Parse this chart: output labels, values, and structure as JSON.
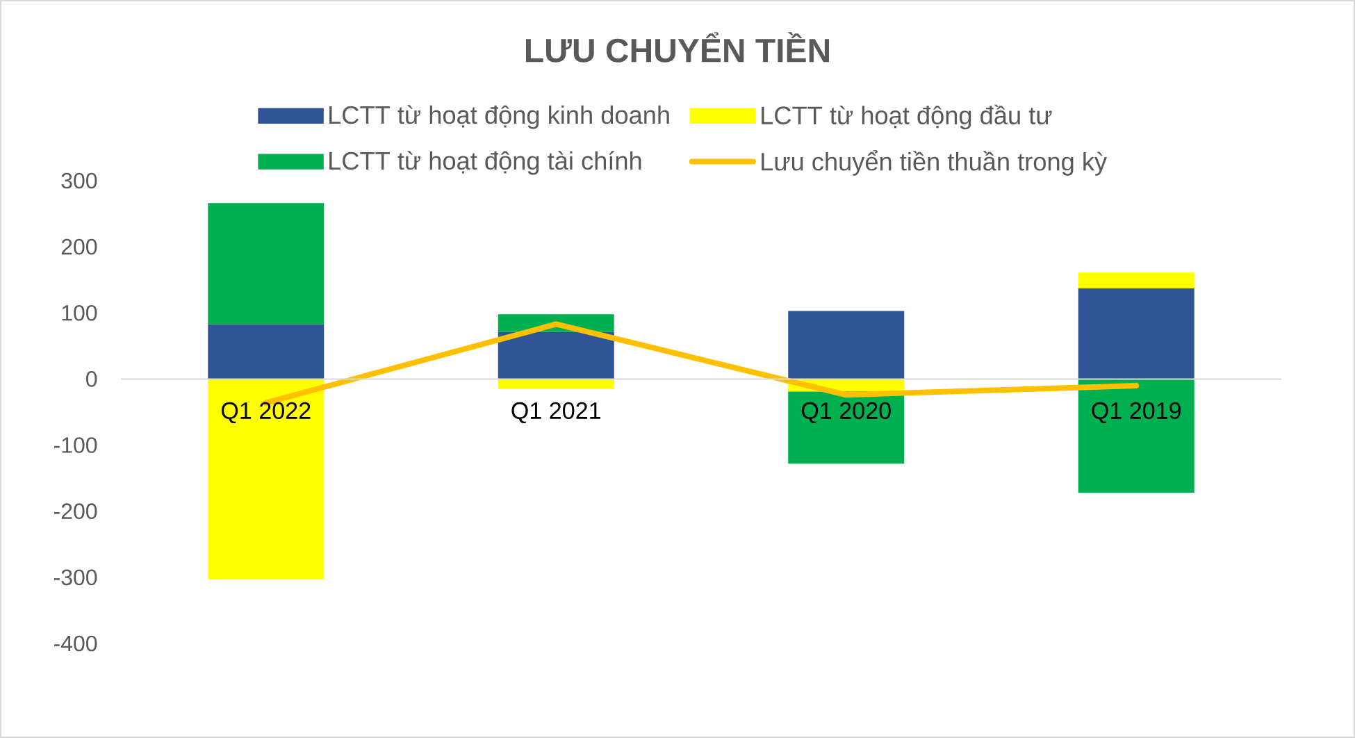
{
  "chart_data": {
    "type": "bar",
    "title": "LƯU CHUYỂN TIỀN",
    "categories": [
      "Q1 2022",
      "Q1 2021",
      "Q1 2020",
      "Q1 2019"
    ],
    "series": [
      {
        "name": "LCTT từ hoạt động kinh doanh",
        "color": "#2f5597",
        "values": [
          83,
          71,
          103,
          137
        ]
      },
      {
        "name": "LCTT từ hoạt động đầu tư",
        "color": "#ffff00",
        "values": [
          -303,
          -15,
          -19,
          24
        ]
      },
      {
        "name": "LCTT từ hoạt động tài chính",
        "color": "#00b050",
        "values": [
          183,
          27,
          -109,
          -172
        ]
      },
      {
        "name": "Lưu chuyển tiền thuần trong kỳ",
        "type": "line",
        "color": "#ffc000",
        "values": [
          -36,
          83,
          -24,
          -10
        ]
      }
    ],
    "stacked": true,
    "ylim": [
      -400,
      300
    ],
    "yticks": [
      -400,
      -300,
      -200,
      -100,
      0,
      100,
      200,
      300
    ],
    "legend": "top"
  }
}
